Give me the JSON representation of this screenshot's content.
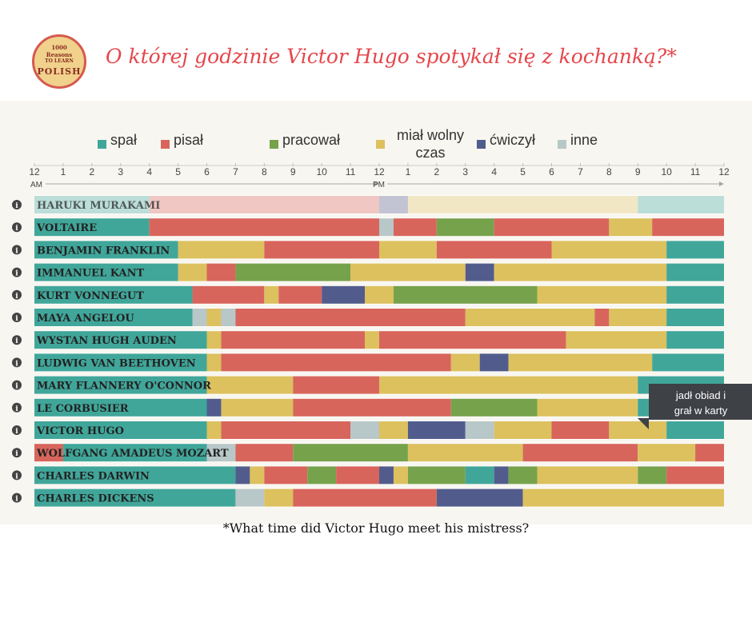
{
  "logo": {
    "line1": "1000",
    "line2": "Reasons",
    "line3": "TO LEARN",
    "line4": "POLISH"
  },
  "title": "O której godzinie Victor Hugo spotykał się z kochanką?*",
  "footnote": "*What time did Victor Hugo meet his mistress?",
  "tooltip": {
    "line1": "jadł obiad i",
    "line2": "grał w karty"
  },
  "colors": {
    "sleep": "#41a69a",
    "write": "#d8655c",
    "work": "#76a24c",
    "leisure": "#dcc15e",
    "exercise": "#525c8c",
    "other": "#b8c7c7"
  },
  "legend": [
    {
      "key": "sleep",
      "label": "spał"
    },
    {
      "key": "write",
      "label": "pisał"
    },
    {
      "key": "work",
      "label": "pracował"
    },
    {
      "key": "leisure",
      "label": "miał wolny czas"
    },
    {
      "key": "exercise",
      "label": "ćwiczył"
    },
    {
      "key": "other",
      "label": "inne"
    }
  ],
  "info_icon": "info-icon",
  "chart_data": {
    "type": "bar",
    "orientation": "horizontal-stacked-timeline",
    "title": "O której godzinie Victor Hugo spotykał się z kochanką?*",
    "x_range_hours": [
      0,
      24
    ],
    "x_tick_labels": [
      "12",
      "1",
      "2",
      "3",
      "4",
      "5",
      "6",
      "7",
      "8",
      "9",
      "10",
      "11",
      "12",
      "1",
      "2",
      "3",
      "4",
      "5",
      "6",
      "7",
      "8",
      "9",
      "10",
      "11",
      "12"
    ],
    "x_am_label": "AM",
    "x_pm_label": "PM",
    "legend_placement": "top",
    "rows": [
      {
        "name": "HARUKI MURAKAMI",
        "faded": true,
        "segments": [
          [
            0,
            4,
            "sleep"
          ],
          [
            4,
            12,
            "write"
          ],
          [
            12,
            13,
            "exercise"
          ],
          [
            13,
            21,
            "leisure"
          ],
          [
            21,
            24,
            "sleep"
          ]
        ]
      },
      {
        "name": "VOLTAIRE",
        "segments": [
          [
            0,
            4,
            "sleep"
          ],
          [
            4,
            12,
            "write"
          ],
          [
            12,
            12.5,
            "other"
          ],
          [
            12.5,
            14,
            "write"
          ],
          [
            14,
            16,
            "work"
          ],
          [
            16,
            20,
            "write"
          ],
          [
            20,
            21.5,
            "leisure"
          ],
          [
            21.5,
            24,
            "write"
          ]
        ]
      },
      {
        "name": "BENJAMIN FRANKLIN",
        "segments": [
          [
            0,
            5,
            "sleep"
          ],
          [
            5,
            8,
            "leisure"
          ],
          [
            8,
            12,
            "write"
          ],
          [
            12,
            14,
            "leisure"
          ],
          [
            14,
            18,
            "write"
          ],
          [
            18,
            22,
            "leisure"
          ],
          [
            22,
            24,
            "sleep"
          ]
        ]
      },
      {
        "name": "IMMANUEL KANT",
        "segments": [
          [
            0,
            5,
            "sleep"
          ],
          [
            5,
            6,
            "leisure"
          ],
          [
            6,
            7,
            "write"
          ],
          [
            7,
            11,
            "work"
          ],
          [
            11,
            15,
            "leisure"
          ],
          [
            15,
            16,
            "exercise"
          ],
          [
            16,
            22,
            "leisure"
          ],
          [
            22,
            24,
            "sleep"
          ]
        ]
      },
      {
        "name": "KURT VONNEGUT",
        "segments": [
          [
            0,
            5.5,
            "sleep"
          ],
          [
            5.5,
            8,
            "write"
          ],
          [
            8,
            8.5,
            "leisure"
          ],
          [
            8.5,
            10,
            "write"
          ],
          [
            10,
            11.5,
            "exercise"
          ],
          [
            11.5,
            12.5,
            "leisure"
          ],
          [
            12.5,
            17.5,
            "work"
          ],
          [
            17.5,
            22,
            "leisure"
          ],
          [
            22,
            24,
            "sleep"
          ]
        ]
      },
      {
        "name": "MAYA ANGELOU",
        "segments": [
          [
            0,
            5.5,
            "sleep"
          ],
          [
            5.5,
            6,
            "other"
          ],
          [
            6,
            6.5,
            "leisure"
          ],
          [
            6.5,
            7,
            "other"
          ],
          [
            7,
            15,
            "write"
          ],
          [
            15,
            19.5,
            "leisure"
          ],
          [
            19.5,
            20,
            "write"
          ],
          [
            20,
            22,
            "leisure"
          ],
          [
            22,
            24,
            "sleep"
          ]
        ]
      },
      {
        "name": "WYSTAN HUGH AUDEN",
        "segments": [
          [
            0,
            6,
            "sleep"
          ],
          [
            6,
            6.5,
            "leisure"
          ],
          [
            6.5,
            11.5,
            "write"
          ],
          [
            11.5,
            12,
            "leisure"
          ],
          [
            12,
            18.5,
            "write"
          ],
          [
            18.5,
            22,
            "leisure"
          ],
          [
            22,
            24,
            "sleep"
          ]
        ]
      },
      {
        "name": "LUDWIG VAN BEETHOVEN",
        "segments": [
          [
            0,
            6,
            "sleep"
          ],
          [
            6,
            6.5,
            "leisure"
          ],
          [
            6.5,
            14.5,
            "write"
          ],
          [
            14.5,
            15.5,
            "leisure"
          ],
          [
            15.5,
            16.5,
            "exercise"
          ],
          [
            16.5,
            21.5,
            "leisure"
          ],
          [
            21.5,
            24,
            "sleep"
          ]
        ]
      },
      {
        "name": "MARY FLANNERY O'CONNOR",
        "segments": [
          [
            0,
            6,
            "sleep"
          ],
          [
            6,
            9,
            "leisure"
          ],
          [
            9,
            12,
            "write"
          ],
          [
            12,
            21,
            "leisure"
          ],
          [
            21,
            24,
            "sleep"
          ]
        ]
      },
      {
        "name": "LE CORBUSIER",
        "segments": [
          [
            0,
            6,
            "sleep"
          ],
          [
            6,
            6.5,
            "exercise"
          ],
          [
            6.5,
            9,
            "leisure"
          ],
          [
            9,
            14.5,
            "write"
          ],
          [
            14.5,
            17.5,
            "work"
          ],
          [
            17.5,
            21,
            "leisure"
          ],
          [
            21,
            24,
            "sleep"
          ]
        ]
      },
      {
        "name": "VICTOR HUGO",
        "segments": [
          [
            0,
            6,
            "sleep"
          ],
          [
            6,
            6.5,
            "leisure"
          ],
          [
            6.5,
            11,
            "write"
          ],
          [
            11,
            12,
            "other"
          ],
          [
            12,
            13,
            "leisure"
          ],
          [
            13,
            15,
            "exercise"
          ],
          [
            15,
            16,
            "other"
          ],
          [
            16,
            18,
            "leisure"
          ],
          [
            18,
            20,
            "write"
          ],
          [
            20,
            22,
            "leisure"
          ],
          [
            22,
            24,
            "sleep"
          ]
        ]
      },
      {
        "name": "WOLFGANG AMADEUS MOZART",
        "segments": [
          [
            0,
            1,
            "write"
          ],
          [
            1,
            6,
            "sleep"
          ],
          [
            6,
            7,
            "other"
          ],
          [
            7,
            9,
            "write"
          ],
          [
            9,
            13,
            "work"
          ],
          [
            13,
            17,
            "leisure"
          ],
          [
            17,
            21,
            "write"
          ],
          [
            21,
            23,
            "leisure"
          ],
          [
            23,
            24,
            "write"
          ]
        ]
      },
      {
        "name": "CHARLES DARWIN",
        "segments": [
          [
            0,
            7,
            "sleep"
          ],
          [
            7,
            7.5,
            "exercise"
          ],
          [
            7.5,
            8,
            "leisure"
          ],
          [
            8,
            9.5,
            "write"
          ],
          [
            9.5,
            10.5,
            "work"
          ],
          [
            10.5,
            12,
            "write"
          ],
          [
            12,
            12.5,
            "exercise"
          ],
          [
            12.5,
            13,
            "leisure"
          ],
          [
            13,
            15,
            "work"
          ],
          [
            15,
            16,
            "sleep"
          ],
          [
            16,
            16.5,
            "exercise"
          ],
          [
            16.5,
            17.5,
            "work"
          ],
          [
            17.5,
            21,
            "leisure"
          ],
          [
            21,
            22,
            "work"
          ],
          [
            22,
            24,
            "write"
          ]
        ]
      },
      {
        "name": "CHARLES DICKENS",
        "segments": [
          [
            0,
            7,
            "sleep"
          ],
          [
            7,
            8,
            "other"
          ],
          [
            8,
            9,
            "leisure"
          ],
          [
            9,
            14,
            "write"
          ],
          [
            14,
            17,
            "exercise"
          ],
          [
            17,
            24,
            "leisure"
          ]
        ]
      }
    ]
  }
}
